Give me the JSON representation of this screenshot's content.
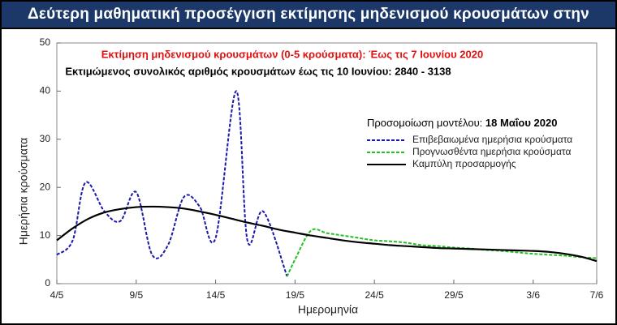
{
  "chart_data": {
    "type": "line",
    "title": "Δεύτερη μαθηματική προσέγγιση εκτίμησης μηδενισμού κρουσμάτων στην Ελλάδα",
    "annotations": [
      "Εκτίμηση μηδενισμού κρουσμάτων (0-5 κρούσματα):  Έως τις 7 Ιουνίου 2020",
      "Εκτιμώμενος συνολικός αριθμός κρουσμάτων έως τις 10 Ιουνίου:  2840 - 3138"
    ],
    "legend_title": "Προσομοίωση μοντέλου:",
    "legend_title_date": "18 Μαΐου 2020",
    "x_label": "Ημερομηνία",
    "y_label": "Ημερήσια κρούσματα",
    "xlim": [
      0,
      34
    ],
    "xticks": [
      {
        "value": 0,
        "label": "4/5"
      },
      {
        "value": 5,
        "label": "9/5"
      },
      {
        "value": 10,
        "label": "14/5"
      },
      {
        "value": 15,
        "label": "19/5"
      },
      {
        "value": 20,
        "label": "24/5"
      },
      {
        "value": 25,
        "label": "29/5"
      },
      {
        "value": 30,
        "label": "3/6"
      },
      {
        "value": 34,
        "label": "7/6"
      }
    ],
    "ylim": [
      0,
      50
    ],
    "yticks": [
      0,
      10,
      20,
      30,
      40,
      50
    ],
    "series": [
      {
        "name": "Επιβεβαιωμένα ημερήσια κρούσματα",
        "color": "#1a1aa8",
        "style": "dashed",
        "x": [
          0,
          1,
          1.8,
          3,
          4,
          5,
          6,
          7,
          8,
          9,
          10,
          11.3,
          12,
          13,
          14.5
        ],
        "values": [
          6,
          9,
          21,
          15,
          13,
          19,
          6,
          8,
          18,
          16,
          9.5,
          40,
          9,
          15,
          1.5
        ]
      },
      {
        "name": "Προγνωσθέντα ημερήσια κρούσματα",
        "color": "#22c022",
        "style": "dashed",
        "x": [
          14.5,
          15,
          16,
          17,
          18,
          19,
          20,
          21,
          22,
          23,
          24,
          25,
          26,
          27,
          28,
          29,
          30,
          31,
          32,
          33,
          34
        ],
        "values": [
          1.5,
          5,
          11,
          10.5,
          10,
          9.5,
          9,
          8.8,
          8.5,
          8,
          7.8,
          7.5,
          7.3,
          7,
          6.8,
          6.5,
          6.2,
          6,
          5.8,
          5.5,
          5.3
        ]
      },
      {
        "name": "Καμπύλη προσαρμογής",
        "color": "#000000",
        "style": "solid",
        "x": [
          0,
          1,
          2,
          3,
          4,
          5,
          6,
          7,
          8,
          9,
          10,
          11,
          12,
          13,
          14,
          15,
          16,
          17,
          18,
          19,
          20,
          21,
          22,
          23,
          24,
          25,
          26,
          27,
          28,
          29,
          30,
          31,
          32,
          33,
          34
        ],
        "values": [
          9,
          11.5,
          13.5,
          14.8,
          15.5,
          15.9,
          16,
          15.9,
          15.6,
          15,
          14.3,
          13.5,
          12.7,
          12,
          11.2,
          10.6,
          10,
          9.5,
          9,
          8.6,
          8.3,
          8,
          7.8,
          7.6,
          7.4,
          7.3,
          7.2,
          7.1,
          7,
          6.9,
          6.8,
          6.6,
          6.2,
          5.6,
          4.7
        ]
      }
    ]
  }
}
